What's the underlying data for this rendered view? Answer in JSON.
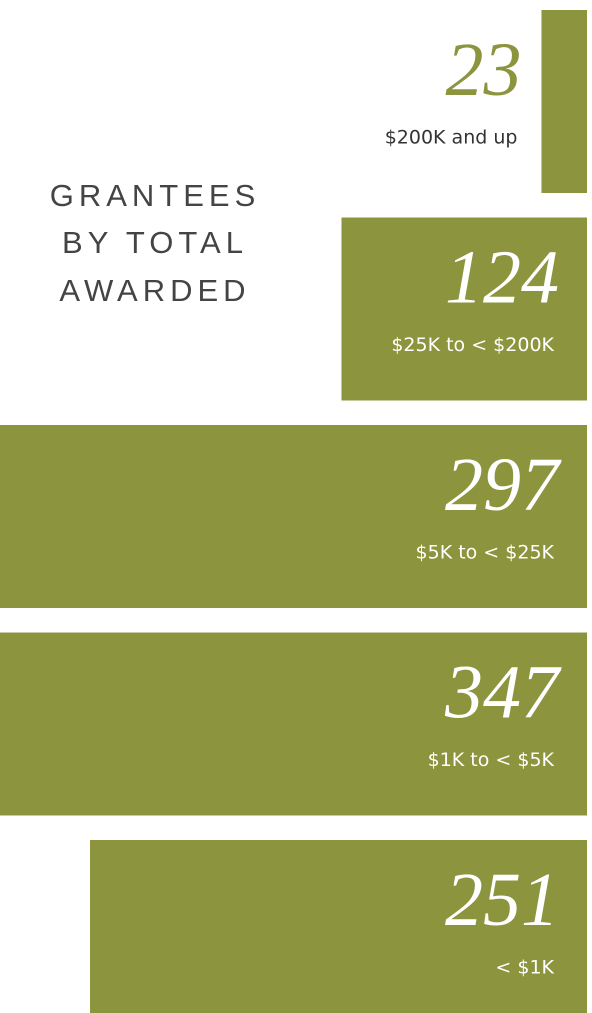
{
  "chart_data": {
    "type": "bar",
    "orientation": "horizontal",
    "title": [
      "GRANTEES",
      "BY TOTAL",
      "AWARDED"
    ],
    "categories": [
      "$200K and up",
      "$25K to < $200K",
      "$5K to < $25K",
      "$1K to < $5K",
      "< $1K"
    ],
    "values": [
      23,
      124,
      297,
      347,
      251
    ],
    "color": "#8c943d"
  }
}
